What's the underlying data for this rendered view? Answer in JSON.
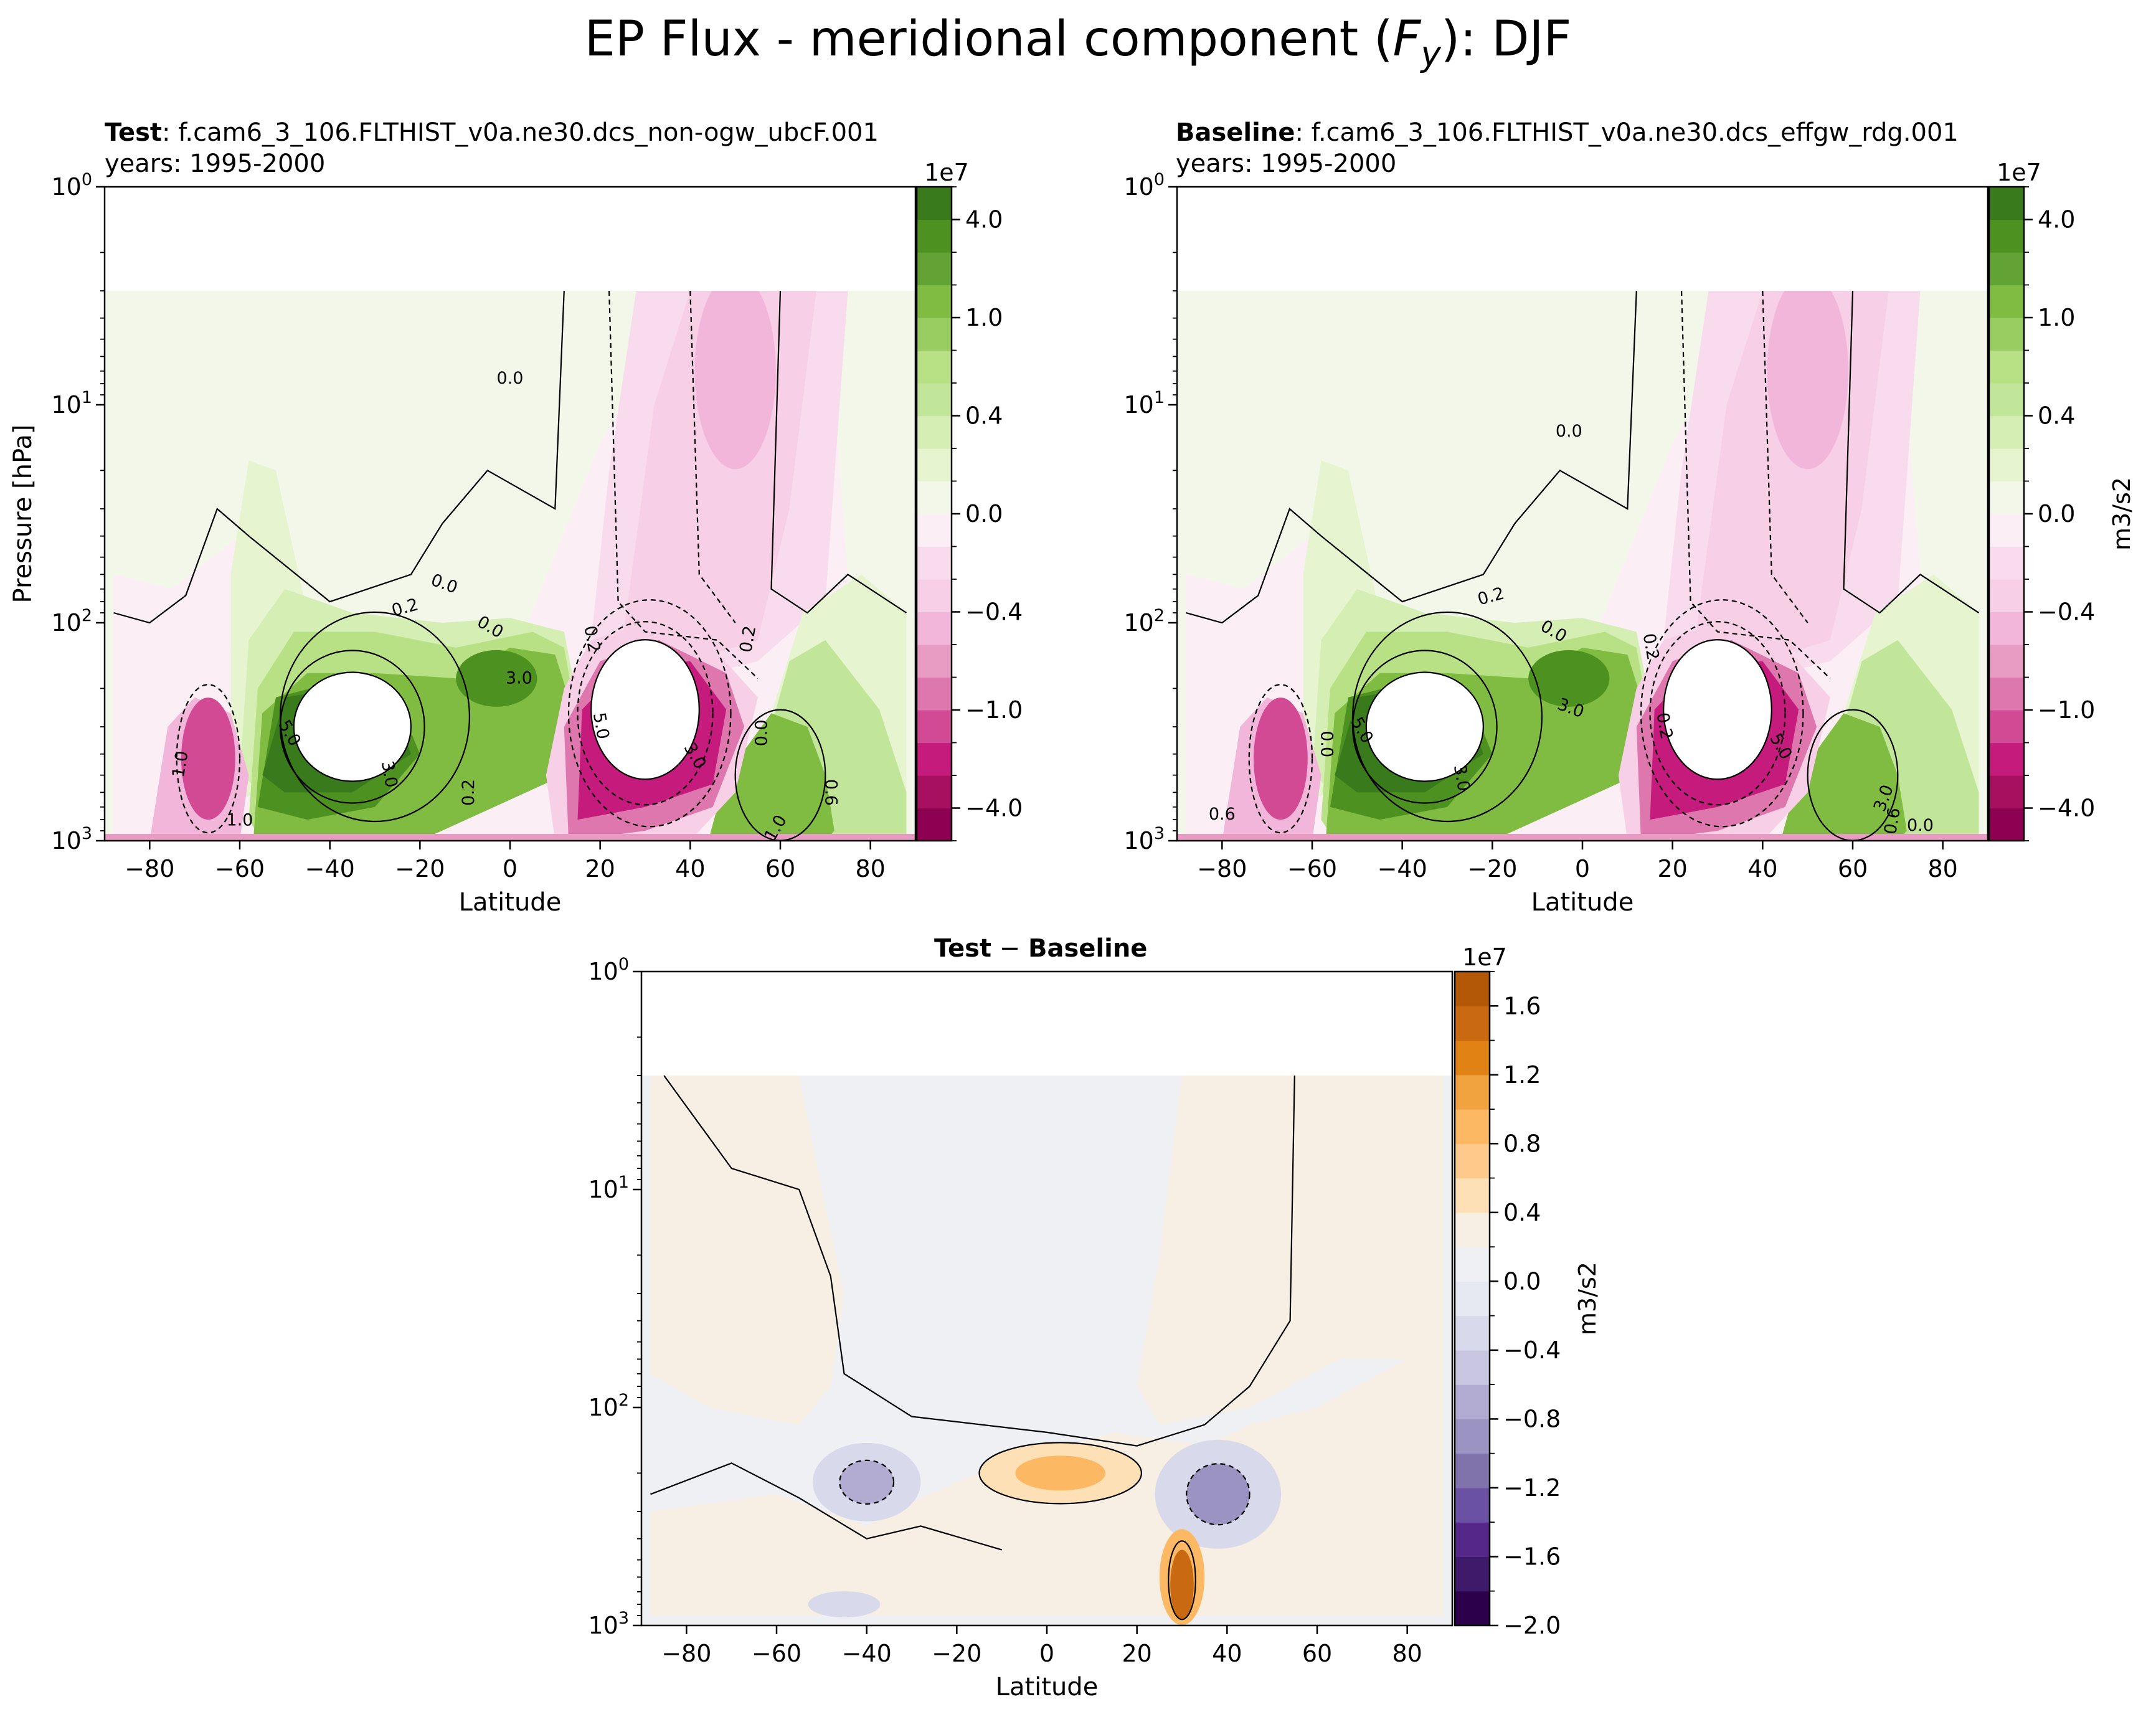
{
  "figure": {
    "title_prefix": "EP Flux - meridional component (",
    "title_symbol": "F",
    "title_subscript": "y",
    "title_suffix": "): DJF"
  },
  "chart_data": [
    {
      "type": "heatmap",
      "panel": "test",
      "title_bold": "Test",
      "title_case": ": f.cam6_3_106.FLTHIST_v0a.ne30.dcs_non-ogw_ubcF.001",
      "subtitle": "years: 1995-2000",
      "xlabel": "Latitude",
      "ylabel": "Pressure [hPa]",
      "x_ticks": [
        -80,
        -60,
        -40,
        -20,
        0,
        20,
        40,
        60,
        80
      ],
      "xlim": [
        -90,
        90
      ],
      "y_scale": "log",
      "y_inverted": true,
      "ylim": [
        1000,
        1
      ],
      "y_tick_labels": [
        "10^0",
        "10^1",
        "10^2",
        "10^3"
      ],
      "colorbar": {
        "colormap": "PiYG",
        "multiplier": "1e7",
        "tick_labels": [
          "4.0",
          "1.0",
          "0.4",
          "0.0",
          "−0.4",
          "−1.0",
          "−4.0"
        ],
        "levels_1e7": [
          -5.0,
          -4.0,
          -3.0,
          -2.0,
          -1.0,
          -0.8,
          -0.6,
          -0.4,
          -0.2,
          -0.1,
          0.0,
          0.1,
          0.2,
          0.4,
          0.6,
          0.8,
          1.0,
          2.0,
          3.0,
          4.0,
          5.0
        ],
        "unit": ""
      },
      "contour_labels": [
        "0.0",
        "0.0",
        "0.2",
        "0.0",
        "3.0",
        "5.0",
        "3.0",
        "0.2",
        "1.0",
        "0.2",
        "5.0",
        "3.0",
        "0.2",
        "0.0",
        "0.6",
        "1.0",
        "1.0"
      ],
      "features": [
        {
          "label": "positive max",
          "lat": -35,
          "p_hPa": 300,
          "value_1e7": 5.0
        },
        {
          "label": "negative max",
          "lat": 30,
          "p_hPa": 250,
          "value_1e7": -5.0
        },
        {
          "label": "negative upper",
          "lat": 50,
          "p_hPa": 7,
          "value_1e7": -0.4
        },
        {
          "label": "positive NH low",
          "lat": 60,
          "p_hPa": 500,
          "value_1e7": 1.5
        },
        {
          "label": "negative SH",
          "lat": -67,
          "p_hPa": 400,
          "value_1e7": -1.0
        }
      ]
    },
    {
      "type": "heatmap",
      "panel": "baseline",
      "title_bold": "Baseline",
      "title_case": ": f.cam6_3_106.FLTHIST_v0a.ne30.dcs_effgw_rdg.001",
      "subtitle": "years: 1995-2000",
      "xlabel": "Latitude",
      "ylabel": "",
      "x_ticks": [
        -80,
        -60,
        -40,
        -20,
        0,
        20,
        40,
        60,
        80
      ],
      "xlim": [
        -90,
        90
      ],
      "y_scale": "log",
      "y_inverted": true,
      "ylim": [
        1000,
        1
      ],
      "y_tick_labels": [
        "10^0",
        "10^1",
        "10^2",
        "10^3"
      ],
      "colorbar": {
        "colormap": "PiYG",
        "multiplier": "1e7",
        "tick_labels": [
          "4.0",
          "1.0",
          "0.4",
          "0.0",
          "−0.4",
          "−1.0",
          "−4.0"
        ],
        "levels_1e7": [
          -5.0,
          -4.0,
          -3.0,
          -2.0,
          -1.0,
          -0.8,
          -0.6,
          -0.4,
          -0.2,
          -0.1,
          0.0,
          0.1,
          0.2,
          0.4,
          0.6,
          0.8,
          1.0,
          2.0,
          3.0,
          4.0,
          5.0
        ],
        "unit": "m3/s2"
      },
      "contour_labels": [
        "0.0",
        "0.2",
        "0.0",
        "3.0",
        "0.2",
        "5.0",
        "3.0",
        "0.0",
        "0.2",
        "5.0",
        "3.0",
        "0.6",
        "0.6",
        "0.0"
      ],
      "features": [
        {
          "label": "positive max",
          "lat": -35,
          "p_hPa": 300,
          "value_1e7": 5.0
        },
        {
          "label": "negative max",
          "lat": 30,
          "p_hPa": 250,
          "value_1e7": -5.0
        },
        {
          "label": "negative upper",
          "lat": 48,
          "p_hPa": 7,
          "value_1e7": -0.4
        }
      ]
    },
    {
      "type": "heatmap",
      "panel": "difference",
      "title_bold_a": "Test",
      "title_sep": " − ",
      "title_bold_b": "Baseline",
      "xlabel": "Latitude",
      "ylabel": "",
      "x_ticks": [
        -80,
        -60,
        -40,
        -20,
        0,
        20,
        40,
        60,
        80
      ],
      "xlim": [
        -90,
        90
      ],
      "y_scale": "log",
      "y_inverted": true,
      "ylim": [
        1000,
        1
      ],
      "y_tick_labels": [
        "10^0",
        "10^1",
        "10^2",
        "10^3"
      ],
      "colorbar": {
        "colormap": "PuOr_r",
        "multiplier": "1e7",
        "tick_labels": [
          "1.6",
          "1.2",
          "0.8",
          "0.4",
          "0.0",
          "−0.4",
          "−0.8",
          "−1.2",
          "−1.6",
          "−2.0"
        ],
        "levels_1e7": [
          -2.0,
          -1.8,
          -1.6,
          -1.4,
          -1.2,
          -1.0,
          -0.8,
          -0.6,
          -0.4,
          -0.2,
          0.0,
          0.2,
          0.4,
          0.6,
          0.8,
          1.0,
          1.2,
          1.4,
          1.6,
          1.8
        ],
        "unit": "m3/s2"
      },
      "features": [
        {
          "label": "positive tropics",
          "lat": 5,
          "p_hPa": 200,
          "value_1e7": 0.5
        },
        {
          "label": "negative SH",
          "lat": -40,
          "p_hPa": 220,
          "value_1e7": -0.4
        },
        {
          "label": "negative NH",
          "lat": 38,
          "p_hPa": 250,
          "value_1e7": -0.8
        },
        {
          "label": "positive near-surface",
          "lat": 30,
          "p_hPa": 550,
          "value_1e7": 1.4
        }
      ]
    }
  ]
}
